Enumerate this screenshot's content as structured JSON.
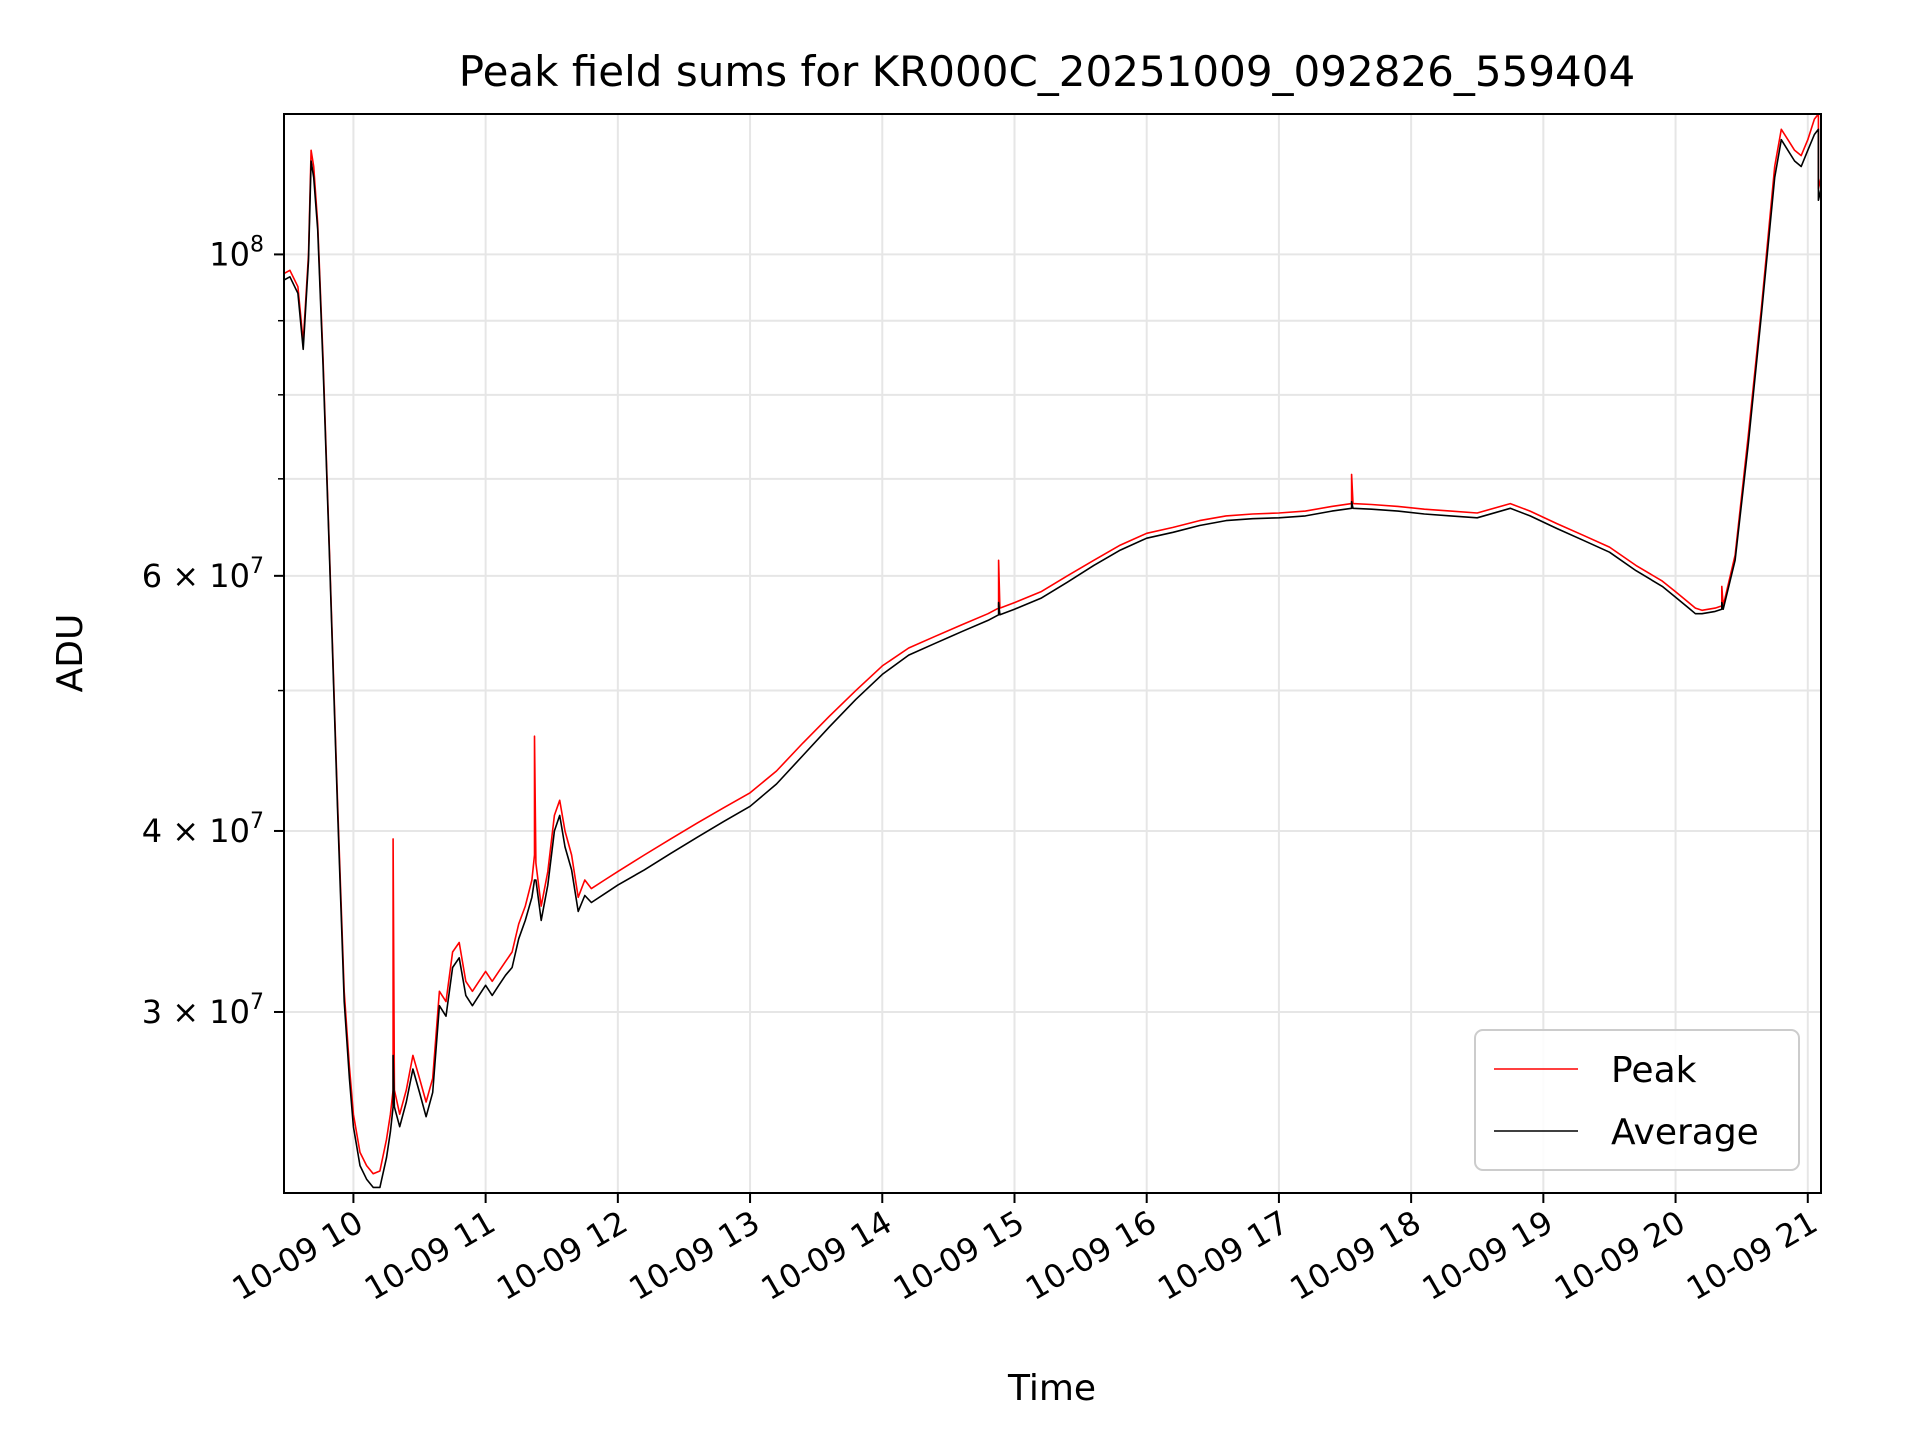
{
  "chart_data": {
    "type": "line",
    "title": "Peak field sums for KR000C_20251009_092826_559404",
    "xlabel": "Time",
    "ylabel": "ADU",
    "yscale": "log",
    "xlim": [
      9.475,
      21.1
    ],
    "ylim": [
      22500000,
      125000000
    ],
    "grid": true,
    "legend_position": "lower-right",
    "x_ticks": [
      {
        "value": 10,
        "label": "10-09 10"
      },
      {
        "value": 11,
        "label": "10-09 11"
      },
      {
        "value": 12,
        "label": "10-09 12"
      },
      {
        "value": 13,
        "label": "10-09 13"
      },
      {
        "value": 14,
        "label": "10-09 14"
      },
      {
        "value": 15,
        "label": "10-09 15"
      },
      {
        "value": 16,
        "label": "10-09 16"
      },
      {
        "value": 17,
        "label": "10-09 17"
      },
      {
        "value": 18,
        "label": "10-09 18"
      },
      {
        "value": 19,
        "label": "10-09 19"
      },
      {
        "value": 20,
        "label": "10-09 20"
      },
      {
        "value": 21,
        "label": "10-09 21"
      }
    ],
    "y_ticks": [
      {
        "value": 30000000,
        "mantissa": "3",
        "exponent": "7"
      },
      {
        "value": 40000000,
        "mantissa": "4",
        "exponent": "7"
      },
      {
        "value": 60000000,
        "mantissa": "6",
        "exponent": "7"
      },
      {
        "value": 100000000,
        "mantissa": "",
        "exponent": "8"
      }
    ],
    "y_minor_ticks": [
      50000000,
      70000000,
      80000000,
      90000000
    ],
    "series": [
      {
        "name": "Peak",
        "color": "#ff0000",
        "x": [
          9.475,
          9.52,
          9.58,
          9.62,
          9.66,
          9.68,
          9.7,
          9.73,
          9.77,
          9.82,
          9.88,
          9.93,
          9.97,
          10.0,
          10.05,
          10.1,
          10.15,
          10.2,
          10.25,
          10.28,
          10.3,
          10.3,
          10.31,
          10.35,
          10.4,
          10.45,
          10.5,
          10.55,
          10.6,
          10.65,
          10.7,
          10.75,
          10.8,
          10.85,
          10.9,
          10.95,
          11.0,
          11.05,
          11.1,
          11.15,
          11.2,
          11.25,
          11.3,
          11.35,
          11.37,
          11.37,
          11.38,
          11.42,
          11.47,
          11.52,
          11.56,
          11.6,
          11.65,
          11.7,
          11.75,
          11.8,
          11.9,
          12.0,
          12.2,
          12.4,
          12.6,
          12.8,
          13.0,
          13.2,
          13.4,
          13.6,
          13.8,
          14.0,
          14.2,
          14.4,
          14.6,
          14.8,
          14.88,
          14.88,
          14.89,
          15.0,
          15.2,
          15.4,
          15.6,
          15.8,
          16.0,
          16.2,
          16.4,
          16.6,
          16.8,
          17.0,
          17.2,
          17.4,
          17.55,
          17.55,
          17.56,
          17.7,
          17.9,
          18.1,
          18.3,
          18.5,
          18.75,
          18.9,
          19.1,
          19.3,
          19.5,
          19.7,
          19.9,
          20.0,
          20.1,
          20.15,
          20.2,
          20.3,
          20.35,
          20.35,
          20.36,
          20.45,
          20.55,
          20.65,
          20.75,
          20.8,
          20.85,
          20.9,
          20.95,
          21.0,
          21.05,
          21.08,
          21.08,
          21.1
        ],
        "y": [
          97000000,
          97500000,
          95000000,
          87000000,
          100000000,
          118000000,
          115000000,
          105000000,
          85000000,
          62000000,
          42000000,
          31000000,
          27500000,
          25500000,
          24000000,
          23500000,
          23200000,
          23300000,
          24500000,
          25500000,
          26500000,
          39500000,
          26500000,
          25500000,
          26500000,
          28000000,
          27000000,
          26000000,
          27000000,
          31000000,
          30500000,
          33000000,
          33500000,
          31500000,
          31000000,
          31500000,
          32000000,
          31500000,
          32000000,
          32500000,
          33000000,
          34500000,
          35500000,
          37000000,
          38500000,
          46500000,
          38000000,
          35500000,
          37500000,
          41000000,
          42000000,
          40000000,
          38500000,
          36000000,
          37000000,
          36500000,
          37000000,
          37500000,
          38500000,
          39500000,
          40500000,
          41500000,
          42500000,
          44000000,
          46000000,
          48000000,
          50000000,
          52000000,
          53500000,
          54500000,
          55500000,
          56500000,
          57000000,
          61500000,
          57000000,
          57500000,
          58500000,
          60000000,
          61500000,
          63000000,
          64200000,
          64800000,
          65500000,
          66000000,
          66200000,
          66300000,
          66500000,
          67000000,
          67300000,
          70500000,
          67300000,
          67200000,
          67000000,
          66700000,
          66500000,
          66300000,
          67300000,
          66500000,
          65200000,
          64000000,
          62800000,
          61000000,
          59500000,
          58500000,
          57500000,
          57000000,
          56800000,
          57000000,
          57200000,
          59000000,
          57200000,
          62000000,
          75000000,
          92000000,
          115000000,
          122000000,
          120000000,
          118000000,
          117000000,
          120000000,
          124000000,
          125000000,
          111000000,
          113000000
        ]
      },
      {
        "name": "Average",
        "color": "#000000",
        "x": [
          9.475,
          9.52,
          9.58,
          9.62,
          9.66,
          9.68,
          9.7,
          9.73,
          9.77,
          9.82,
          9.88,
          9.93,
          9.97,
          10.0,
          10.05,
          10.1,
          10.15,
          10.2,
          10.25,
          10.28,
          10.3,
          10.3,
          10.31,
          10.35,
          10.4,
          10.45,
          10.5,
          10.55,
          10.6,
          10.65,
          10.7,
          10.75,
          10.8,
          10.85,
          10.9,
          10.95,
          11.0,
          11.05,
          11.1,
          11.15,
          11.2,
          11.25,
          11.3,
          11.35,
          11.37,
          11.37,
          11.38,
          11.42,
          11.47,
          11.52,
          11.56,
          11.6,
          11.65,
          11.7,
          11.75,
          11.8,
          11.9,
          12.0,
          12.2,
          12.4,
          12.6,
          12.8,
          13.0,
          13.2,
          13.4,
          13.6,
          13.8,
          14.0,
          14.2,
          14.4,
          14.6,
          14.8,
          14.88,
          14.88,
          14.89,
          15.0,
          15.2,
          15.4,
          15.6,
          15.8,
          16.0,
          16.2,
          16.4,
          16.6,
          16.8,
          17.0,
          17.2,
          17.4,
          17.55,
          17.55,
          17.56,
          17.7,
          17.9,
          18.1,
          18.3,
          18.5,
          18.75,
          18.9,
          19.1,
          19.3,
          19.5,
          19.7,
          19.9,
          20.0,
          20.1,
          20.15,
          20.2,
          20.3,
          20.35,
          20.35,
          20.36,
          20.45,
          20.55,
          20.65,
          20.75,
          20.8,
          20.85,
          20.9,
          20.95,
          21.0,
          21.05,
          21.08,
          21.08,
          21.1
        ],
        "y": [
          96000000,
          96500000,
          94000000,
          86000000,
          99000000,
          116000000,
          113000000,
          104000000,
          84000000,
          61500000,
          41500000,
          30500000,
          27000000,
          25000000,
          23500000,
          23000000,
          22700000,
          22700000,
          23800000,
          24800000,
          25800000,
          28000000,
          25800000,
          25000000,
          26000000,
          27400000,
          26400000,
          25400000,
          26400000,
          30300000,
          29800000,
          32200000,
          32700000,
          30800000,
          30300000,
          30800000,
          31300000,
          30800000,
          31300000,
          31800000,
          32200000,
          33700000,
          34700000,
          36000000,
          37000000,
          37000000,
          37000000,
          34700000,
          36700000,
          40000000,
          41000000,
          39000000,
          37600000,
          35200000,
          36100000,
          35700000,
          36200000,
          36700000,
          37600000,
          38600000,
          39600000,
          40600000,
          41600000,
          43100000,
          45100000,
          47200000,
          49300000,
          51300000,
          52900000,
          53900000,
          54900000,
          55900000,
          56400000,
          57500000,
          56400000,
          56900000,
          57900000,
          59400000,
          61000000,
          62500000,
          63700000,
          64300000,
          65000000,
          65500000,
          65700000,
          65800000,
          66000000,
          66500000,
          66800000,
          67500000,
          66800000,
          66700000,
          66500000,
          66200000,
          66000000,
          65800000,
          66800000,
          66000000,
          64700000,
          63500000,
          62300000,
          60500000,
          59000000,
          58000000,
          57000000,
          56500000,
          56500000,
          56700000,
          56900000,
          57500000,
          56900000,
          61500000,
          74000000,
          91000000,
          113000000,
          120000000,
          118000000,
          116000000,
          115000000,
          118000000,
          121000000,
          122000000,
          109000000,
          111000000
        ]
      }
    ]
  }
}
